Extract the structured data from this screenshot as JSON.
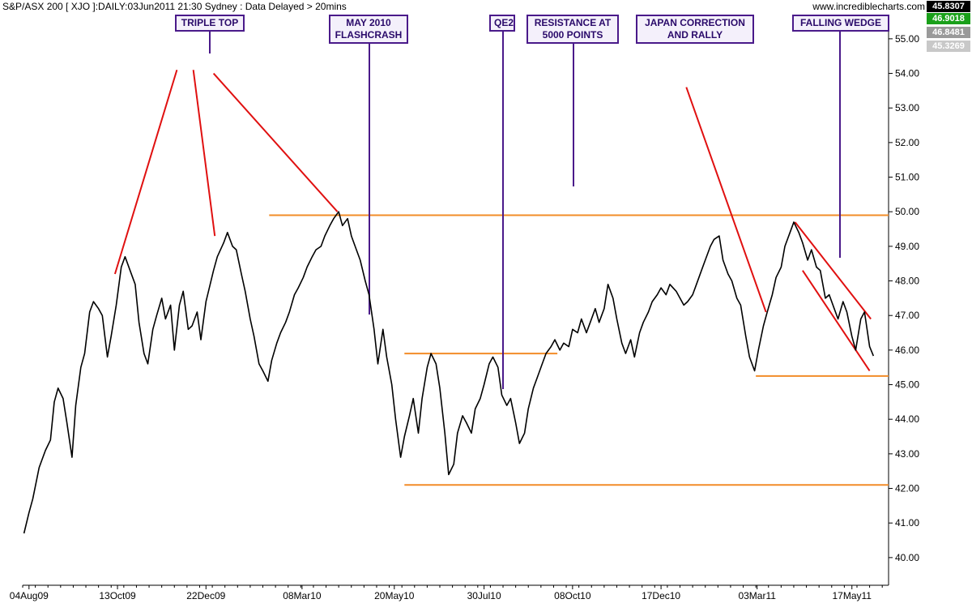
{
  "header": {
    "title": "S&P/ASX 200 [ XJO ]:DAILY:03Jun2011 21:30 Sydney : Data Delayed > 20mins",
    "site": "www.incrediblecharts.com"
  },
  "value_boxes": [
    {
      "text": "45.8307",
      "bg": "#000000",
      "fg": "#ffffff"
    },
    {
      "text": "46.9018",
      "bg": "#1aa01a",
      "fg": "#ffffff"
    },
    {
      "text": "46.8481",
      "bg": "#9a9a9a",
      "fg": "#ffffff"
    },
    {
      "text": "45.3269",
      "bg": "#c8c8c8",
      "fg": "#ffffff"
    }
  ],
  "annotations": [
    {
      "id": "triple-top",
      "lines": [
        "TRIPLE TOP"
      ]
    },
    {
      "id": "flashcrash",
      "lines": [
        "MAY 2010",
        "FLASHCRASH"
      ]
    },
    {
      "id": "qe2",
      "lines": [
        "QE2"
      ]
    },
    {
      "id": "resistance",
      "lines": [
        "RESISTANCE AT",
        "5000 POINTS"
      ]
    },
    {
      "id": "japan",
      "lines": [
        "JAPAN CORRECTION",
        "AND RALLY"
      ]
    },
    {
      "id": "wedge",
      "lines": [
        "FALLING WEDGE"
      ]
    }
  ],
  "chart_data": {
    "type": "line",
    "title": "S&P/ASX 200 [ XJO ]:DAILY:03Jun2011 21:30 Sydney : Data Delayed > 20mins",
    "xlabel": "",
    "ylabel": "",
    "x_ticks": [
      "04Aug09",
      "13Oct09",
      "22Dec09",
      "08Mar10",
      "20May10",
      "30Jul10",
      "08Oct10",
      "17Dec10",
      "03Mar11",
      "17May11"
    ],
    "y_ticks": [
      "40.00",
      "41.00",
      "42.00",
      "43.00",
      "44.00",
      "45.00",
      "46.00",
      "47.00",
      "48.00",
      "49.00",
      "50.00",
      "51.00",
      "52.00",
      "53.00",
      "54.00",
      "55.00"
    ],
    "ylim": [
      39.2,
      55.7
    ],
    "xlim": [
      "2009-07-30",
      "2011-06-15"
    ],
    "grid": false,
    "legend": "none",
    "series": [
      {
        "name": "",
        "color": "#000000",
        "points": [
          [
            "2009-07-31",
            40.7
          ],
          [
            "2009-08-04",
            41.3
          ],
          [
            "2009-08-07",
            41.7
          ],
          [
            "2009-08-12",
            42.6
          ],
          [
            "2009-08-17",
            43.1
          ],
          [
            "2009-08-21",
            43.4
          ],
          [
            "2009-08-24",
            44.5
          ],
          [
            "2009-08-27",
            44.9
          ],
          [
            "2009-08-31",
            44.6
          ],
          [
            "2009-09-03",
            43.9
          ],
          [
            "2009-09-07",
            42.9
          ],
          [
            "2009-09-10",
            44.4
          ],
          [
            "2009-09-14",
            45.5
          ],
          [
            "2009-09-17",
            45.9
          ],
          [
            "2009-09-21",
            47.1
          ],
          [
            "2009-09-24",
            47.4
          ],
          [
            "2009-09-28",
            47.2
          ],
          [
            "2009-10-01",
            47.0
          ],
          [
            "2009-10-05",
            45.8
          ],
          [
            "2009-10-08",
            46.4
          ],
          [
            "2009-10-12",
            47.3
          ],
          [
            "2009-10-16",
            48.4
          ],
          [
            "2009-10-19",
            48.7
          ],
          [
            "2009-10-23",
            48.3
          ],
          [
            "2009-10-27",
            47.9
          ],
          [
            "2009-10-30",
            46.8
          ],
          [
            "2009-11-03",
            45.9
          ],
          [
            "2009-11-06",
            45.6
          ],
          [
            "2009-11-10",
            46.6
          ],
          [
            "2009-11-13",
            47.0
          ],
          [
            "2009-11-17",
            47.5
          ],
          [
            "2009-11-20",
            46.9
          ],
          [
            "2009-11-24",
            47.3
          ],
          [
            "2009-11-27",
            46.0
          ],
          [
            "2009-12-01",
            47.3
          ],
          [
            "2009-12-04",
            47.7
          ],
          [
            "2009-12-08",
            46.6
          ],
          [
            "2009-12-11",
            46.7
          ],
          [
            "2009-12-15",
            47.1
          ],
          [
            "2009-12-18",
            46.3
          ],
          [
            "2009-12-22",
            47.4
          ],
          [
            "2009-12-28",
            48.3
          ],
          [
            "2009-12-31",
            48.7
          ],
          [
            "2010-01-05",
            49.1
          ],
          [
            "2010-01-08",
            49.4
          ],
          [
            "2010-01-12",
            49.0
          ],
          [
            "2010-01-15",
            48.9
          ],
          [
            "2010-01-19",
            48.2
          ],
          [
            "2010-01-22",
            47.7
          ],
          [
            "2010-01-26",
            46.9
          ],
          [
            "2010-01-29",
            46.4
          ],
          [
            "2010-02-02",
            45.6
          ],
          [
            "2010-02-05",
            45.4
          ],
          [
            "2010-02-09",
            45.1
          ],
          [
            "2010-02-12",
            45.7
          ],
          [
            "2010-02-16",
            46.2
          ],
          [
            "2010-02-19",
            46.5
          ],
          [
            "2010-02-23",
            46.8
          ],
          [
            "2010-02-26",
            47.1
          ],
          [
            "2010-03-02",
            47.6
          ],
          [
            "2010-03-05",
            47.8
          ],
          [
            "2010-03-09",
            48.1
          ],
          [
            "2010-03-12",
            48.4
          ],
          [
            "2010-03-16",
            48.7
          ],
          [
            "2010-03-19",
            48.9
          ],
          [
            "2010-03-23",
            49.0
          ],
          [
            "2010-03-26",
            49.3
          ],
          [
            "2010-03-30",
            49.6
          ],
          [
            "2010-04-02",
            49.8
          ],
          [
            "2010-04-06",
            50.0
          ],
          [
            "2010-04-09",
            49.6
          ],
          [
            "2010-04-13",
            49.8
          ],
          [
            "2010-04-16",
            49.3
          ],
          [
            "2010-04-20",
            48.9
          ],
          [
            "2010-04-23",
            48.6
          ],
          [
            "2010-04-27",
            48.0
          ],
          [
            "2010-04-30",
            47.6
          ],
          [
            "2010-05-04",
            46.6
          ],
          [
            "2010-05-07",
            45.6
          ],
          [
            "2010-05-11",
            46.6
          ],
          [
            "2010-05-14",
            45.8
          ],
          [
            "2010-05-18",
            45.0
          ],
          [
            "2010-05-21",
            44.0
          ],
          [
            "2010-05-25",
            42.9
          ],
          [
            "2010-05-28",
            43.5
          ],
          [
            "2010-06-01",
            44.1
          ],
          [
            "2010-06-04",
            44.6
          ],
          [
            "2010-06-08",
            43.6
          ],
          [
            "2010-06-11",
            44.6
          ],
          [
            "2010-06-15",
            45.5
          ],
          [
            "2010-06-18",
            45.9
          ],
          [
            "2010-06-22",
            45.6
          ],
          [
            "2010-06-25",
            44.9
          ],
          [
            "2010-06-29",
            43.6
          ],
          [
            "2010-07-02",
            42.4
          ],
          [
            "2010-07-06",
            42.7
          ],
          [
            "2010-07-09",
            43.6
          ],
          [
            "2010-07-13",
            44.1
          ],
          [
            "2010-07-16",
            43.9
          ],
          [
            "2010-07-20",
            43.6
          ],
          [
            "2010-07-23",
            44.3
          ],
          [
            "2010-07-27",
            44.6
          ],
          [
            "2010-07-30",
            45.0
          ],
          [
            "2010-08-03",
            45.6
          ],
          [
            "2010-08-06",
            45.8
          ],
          [
            "2010-08-10",
            45.5
          ],
          [
            "2010-08-13",
            44.7
          ],
          [
            "2010-08-17",
            44.4
          ],
          [
            "2010-08-20",
            44.6
          ],
          [
            "2010-08-24",
            43.9
          ],
          [
            "2010-08-27",
            43.3
          ],
          [
            "2010-08-31",
            43.6
          ],
          [
            "2010-09-03",
            44.3
          ],
          [
            "2010-09-07",
            44.9
          ],
          [
            "2010-09-10",
            45.2
          ],
          [
            "2010-09-14",
            45.6
          ],
          [
            "2010-09-17",
            45.9
          ],
          [
            "2010-09-21",
            46.1
          ],
          [
            "2010-09-24",
            46.3
          ],
          [
            "2010-09-28",
            46.0
          ],
          [
            "2010-10-01",
            46.2
          ],
          [
            "2010-10-05",
            46.1
          ],
          [
            "2010-10-08",
            46.6
          ],
          [
            "2010-10-12",
            46.5
          ],
          [
            "2010-10-15",
            46.9
          ],
          [
            "2010-10-19",
            46.5
          ],
          [
            "2010-10-22",
            46.8
          ],
          [
            "2010-10-26",
            47.2
          ],
          [
            "2010-10-29",
            46.8
          ],
          [
            "2010-11-02",
            47.2
          ],
          [
            "2010-11-05",
            47.9
          ],
          [
            "2010-11-09",
            47.5
          ],
          [
            "2010-11-12",
            46.9
          ],
          [
            "2010-11-16",
            46.2
          ],
          [
            "2010-11-19",
            45.9
          ],
          [
            "2010-11-23",
            46.3
          ],
          [
            "2010-11-26",
            45.8
          ],
          [
            "2010-11-30",
            46.5
          ],
          [
            "2010-12-03",
            46.8
          ],
          [
            "2010-12-07",
            47.1
          ],
          [
            "2010-12-10",
            47.4
          ],
          [
            "2010-12-14",
            47.6
          ],
          [
            "2010-12-17",
            47.8
          ],
          [
            "2010-12-21",
            47.6
          ],
          [
            "2010-12-24",
            47.9
          ],
          [
            "2010-12-29",
            47.7
          ],
          [
            "2011-01-04",
            47.3
          ],
          [
            "2011-01-07",
            47.4
          ],
          [
            "2011-01-11",
            47.6
          ],
          [
            "2011-01-14",
            47.9
          ],
          [
            "2011-01-18",
            48.3
          ],
          [
            "2011-01-21",
            48.6
          ],
          [
            "2011-01-25",
            49.0
          ],
          [
            "2011-01-28",
            49.2
          ],
          [
            "2011-02-01",
            49.3
          ],
          [
            "2011-02-04",
            48.6
          ],
          [
            "2011-02-08",
            48.2
          ],
          [
            "2011-02-11",
            48.0
          ],
          [
            "2011-02-15",
            47.5
          ],
          [
            "2011-02-18",
            47.3
          ],
          [
            "2011-02-22",
            46.4
          ],
          [
            "2011-02-25",
            45.8
          ],
          [
            "2011-03-01",
            45.4
          ],
          [
            "2011-03-04",
            46.0
          ],
          [
            "2011-03-08",
            46.7
          ],
          [
            "2011-03-11",
            47.1
          ],
          [
            "2011-03-15",
            47.6
          ],
          [
            "2011-03-18",
            48.1
          ],
          [
            "2011-03-22",
            48.4
          ],
          [
            "2011-03-25",
            49.0
          ],
          [
            "2011-03-29",
            49.4
          ],
          [
            "2011-04-01",
            49.7
          ],
          [
            "2011-04-05",
            49.4
          ],
          [
            "2011-04-08",
            49.1
          ],
          [
            "2011-04-12",
            48.6
          ],
          [
            "2011-04-15",
            48.9
          ],
          [
            "2011-04-19",
            48.4
          ],
          [
            "2011-04-22",
            48.3
          ],
          [
            "2011-04-26",
            47.5
          ],
          [
            "2011-04-29",
            47.6
          ],
          [
            "2011-05-03",
            47.2
          ],
          [
            "2011-05-06",
            46.9
          ],
          [
            "2011-05-10",
            47.4
          ],
          [
            "2011-05-13",
            47.1
          ],
          [
            "2011-05-17",
            46.4
          ],
          [
            "2011-05-20",
            46.0
          ],
          [
            "2011-05-24",
            46.9
          ],
          [
            "2011-05-27",
            47.1
          ],
          [
            "2011-05-31",
            46.1
          ],
          [
            "2011-06-03",
            45.83
          ]
        ]
      }
    ],
    "overlays": {
      "trendlines_red": [
        [
          [
            "2009-10-11",
            48.2
          ],
          [
            "2009-11-29",
            54.1
          ]
        ],
        [
          [
            "2009-12-12",
            54.1
          ],
          [
            "2009-12-29",
            49.3
          ]
        ],
        [
          [
            "2009-12-28",
            54.0
          ],
          [
            "2010-04-05",
            50.0
          ]
        ],
        [
          [
            "2011-01-06",
            53.6
          ],
          [
            "2011-03-10",
            47.1
          ]
        ],
        [
          [
            "2011-04-02",
            49.7
          ],
          [
            "2011-06-01",
            46.9
          ]
        ],
        [
          [
            "2011-04-08",
            48.3
          ],
          [
            "2011-05-31",
            45.4
          ]
        ]
      ],
      "support_resistance_orange": [
        [
          [
            "2010-02-10",
            49.9
          ],
          [
            "2011-06-15",
            49.9
          ]
        ],
        [
          [
            "2010-05-28",
            42.1
          ],
          [
            "2011-06-15",
            42.1
          ]
        ],
        [
          [
            "2010-05-28",
            45.9
          ],
          [
            "2010-09-26",
            45.9
          ]
        ],
        [
          [
            "2011-03-02",
            45.25
          ],
          [
            "2011-06-15",
            45.25
          ]
        ]
      ]
    }
  }
}
